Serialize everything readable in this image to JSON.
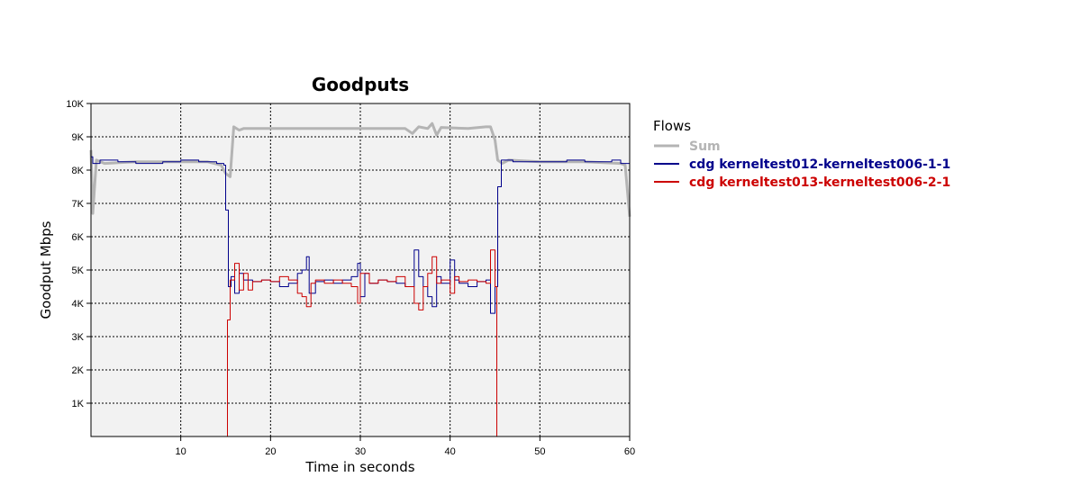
{
  "chart_data": {
    "type": "line",
    "title": "Goodputs",
    "xlabel": "Time in seconds",
    "ylabel": "Goodput Mbps",
    "xlim": [
      0,
      60
    ],
    "ylim": [
      0,
      10000
    ],
    "x_ticks": [
      10,
      20,
      30,
      40,
      50,
      60
    ],
    "x_tick_labels": [
      "10",
      "20",
      "30",
      "40",
      "50",
      "60"
    ],
    "y_ticks": [
      1000,
      2000,
      3000,
      4000,
      5000,
      6000,
      7000,
      8000,
      9000,
      10000
    ],
    "y_tick_labels": [
      "1K",
      "2K",
      "3K",
      "4K",
      "5K",
      "6K",
      "7K",
      "8K",
      "9K",
      "10K"
    ],
    "grid": true,
    "legend": {
      "title": "Flows",
      "placement": "right"
    },
    "series": [
      {
        "name": "Sum",
        "color": "#b4b4b4",
        "step": false,
        "points": [
          [
            0,
            8600
          ],
          [
            0.2,
            6700
          ],
          [
            0.6,
            8300
          ],
          [
            1.5,
            8200
          ],
          [
            5,
            8250
          ],
          [
            10,
            8250
          ],
          [
            13,
            8250
          ],
          [
            14.5,
            8150
          ],
          [
            15.0,
            7900
          ],
          [
            15.5,
            7800
          ],
          [
            15.9,
            9300
          ],
          [
            16.5,
            9200
          ],
          [
            17,
            9250
          ],
          [
            20,
            9250
          ],
          [
            25,
            9250
          ],
          [
            30,
            9250
          ],
          [
            35,
            9250
          ],
          [
            35.8,
            9100
          ],
          [
            36.5,
            9300
          ],
          [
            37.5,
            9250
          ],
          [
            38.0,
            9400
          ],
          [
            38.5,
            9050
          ],
          [
            39,
            9280
          ],
          [
            42,
            9250
          ],
          [
            44,
            9300
          ],
          [
            44.5,
            9300
          ],
          [
            45.0,
            8900
          ],
          [
            45.3,
            8300
          ],
          [
            45.8,
            8200
          ],
          [
            46.5,
            8300
          ],
          [
            50,
            8250
          ],
          [
            55,
            8250
          ],
          [
            59,
            8200
          ],
          [
            59.5,
            8150
          ],
          [
            60,
            6600
          ]
        ]
      },
      {
        "name": "cdg kerneltest012-kerneltest006-1-1",
        "color": "#00008b",
        "step": true,
        "points": [
          [
            0,
            8400
          ],
          [
            0.2,
            8200
          ],
          [
            1,
            8300
          ],
          [
            3,
            8250
          ],
          [
            5,
            8200
          ],
          [
            8,
            8250
          ],
          [
            10,
            8300
          ],
          [
            12,
            8250
          ],
          [
            14,
            8200
          ],
          [
            14.8,
            8150
          ],
          [
            15.0,
            6800
          ],
          [
            15.3,
            4500
          ],
          [
            15.6,
            4800
          ],
          [
            16,
            4300
          ],
          [
            16.5,
            4900
          ],
          [
            17,
            4700
          ],
          [
            18,
            4650
          ],
          [
            19,
            4700
          ],
          [
            20,
            4650
          ],
          [
            21,
            4500
          ],
          [
            22,
            4600
          ],
          [
            23,
            4900
          ],
          [
            23.5,
            5000
          ],
          [
            24,
            5400
          ],
          [
            24.3,
            4300
          ],
          [
            25,
            4650
          ],
          [
            26,
            4700
          ],
          [
            27,
            4600
          ],
          [
            28,
            4700
          ],
          [
            29,
            4800
          ],
          [
            29.7,
            5200
          ],
          [
            30,
            4200
          ],
          [
            30.5,
            4900
          ],
          [
            31,
            4600
          ],
          [
            32,
            4700
          ],
          [
            33,
            4650
          ],
          [
            34,
            4600
          ],
          [
            35,
            4500
          ],
          [
            36,
            5600
          ],
          [
            36.5,
            4800
          ],
          [
            37,
            4500
          ],
          [
            37.5,
            4200
          ],
          [
            38,
            3900
          ],
          [
            38.5,
            4800
          ],
          [
            39,
            4600
          ],
          [
            40,
            5300
          ],
          [
            40.5,
            4700
          ],
          [
            41,
            4600
          ],
          [
            42,
            4500
          ],
          [
            43,
            4650
          ],
          [
            44,
            4700
          ],
          [
            44.5,
            3700
          ],
          [
            45.0,
            4500
          ],
          [
            45.3,
            7500
          ],
          [
            45.7,
            8300
          ],
          [
            47,
            8250
          ],
          [
            50,
            8250
          ],
          [
            53,
            8300
          ],
          [
            55,
            8250
          ],
          [
            58,
            8300
          ],
          [
            59,
            8200
          ],
          [
            60,
            8200
          ]
        ]
      },
      {
        "name": "cdg kerneltest013-kerneltest006-2-1",
        "color": "#cc0000",
        "step": true,
        "points": [
          [
            0,
            0
          ],
          [
            15.0,
            0
          ],
          [
            15.2,
            3500
          ],
          [
            15.5,
            4700
          ],
          [
            16,
            5200
          ],
          [
            16.5,
            4400
          ],
          [
            17,
            4900
          ],
          [
            17.5,
            4400
          ],
          [
            18,
            4650
          ],
          [
            19,
            4700
          ],
          [
            20,
            4650
          ],
          [
            21,
            4800
          ],
          [
            22,
            4700
          ],
          [
            23,
            4300
          ],
          [
            23.5,
            4200
          ],
          [
            24,
            3900
          ],
          [
            24.5,
            4600
          ],
          [
            25,
            4700
          ],
          [
            26,
            4600
          ],
          [
            27,
            4700
          ],
          [
            28,
            4600
          ],
          [
            29,
            4500
          ],
          [
            29.7,
            4000
          ],
          [
            30,
            4900
          ],
          [
            31,
            4600
          ],
          [
            32,
            4700
          ],
          [
            33,
            4650
          ],
          [
            34,
            4800
          ],
          [
            35,
            4500
          ],
          [
            36,
            4000
          ],
          [
            36.5,
            3800
          ],
          [
            37,
            4500
          ],
          [
            37.5,
            4900
          ],
          [
            38,
            5400
          ],
          [
            38.5,
            4600
          ],
          [
            39,
            4700
          ],
          [
            40,
            4300
          ],
          [
            40.5,
            4800
          ],
          [
            41,
            4650
          ],
          [
            42,
            4700
          ],
          [
            43,
            4650
          ],
          [
            44,
            4600
          ],
          [
            44.5,
            5600
          ],
          [
            45.0,
            4500
          ],
          [
            45.2,
            0
          ],
          [
            60,
            0
          ]
        ]
      }
    ]
  }
}
